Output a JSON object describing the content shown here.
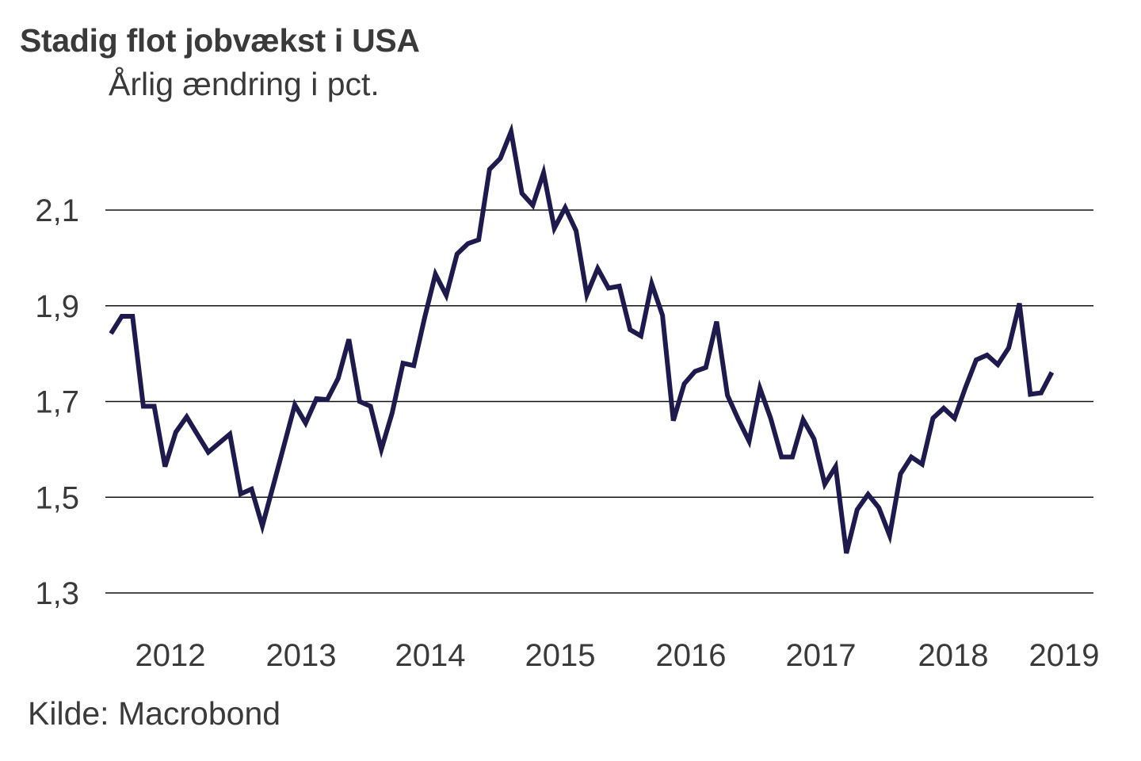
{
  "chart_data": {
    "type": "line",
    "title": "Stadig flot jobvækst i USA",
    "subtitle": "Årlig ændring i pct.",
    "source": "Kilde: Macrobond",
    "xlabel": "",
    "ylabel": "",
    "ylim": [
      1.3,
      2.3
    ],
    "yticks": [
      2.1,
      1.9,
      1.7,
      1.5,
      1.3
    ],
    "ytick_labels": [
      "2,1",
      "1,9",
      "1,7",
      "1,5",
      "1,3"
    ],
    "xtick_labels": [
      "2012",
      "2013",
      "2014",
      "2015",
      "2016",
      "2017",
      "2018",
      "2019"
    ],
    "x_start": "2012-01",
    "x_frequency": "monthly",
    "grid": "horizontal",
    "legend": "none",
    "line_color": "#1f1a4e",
    "series": [
      {
        "name": "Årlig ændring i pct.",
        "values": [
          1.842,
          1.878,
          1.878,
          1.69,
          1.69,
          1.564,
          1.636,
          1.668,
          1.631,
          1.594,
          1.613,
          1.632,
          1.507,
          1.517,
          1.44,
          1.524,
          1.608,
          1.693,
          1.655,
          1.706,
          1.704,
          1.748,
          1.83,
          1.7,
          1.69,
          1.6,
          1.676,
          1.78,
          1.775,
          1.875,
          1.966,
          1.922,
          2.008,
          2.03,
          2.038,
          2.185,
          2.208,
          2.264,
          2.135,
          2.11,
          2.178,
          2.062,
          2.105,
          2.057,
          1.923,
          1.978,
          1.937,
          1.941,
          1.85,
          1.837,
          1.946,
          1.88,
          1.66,
          1.737,
          1.763,
          1.771,
          1.867,
          1.713,
          1.663,
          1.617,
          1.728,
          1.665,
          1.584,
          1.584,
          1.662,
          1.622,
          1.527,
          1.564,
          1.383,
          1.474,
          1.506,
          1.478,
          1.42,
          1.549,
          1.584,
          1.569,
          1.665,
          1.686,
          1.665,
          1.729,
          1.787,
          1.797,
          1.777,
          1.812,
          1.905,
          1.715,
          1.718,
          1.761
        ]
      }
    ]
  }
}
